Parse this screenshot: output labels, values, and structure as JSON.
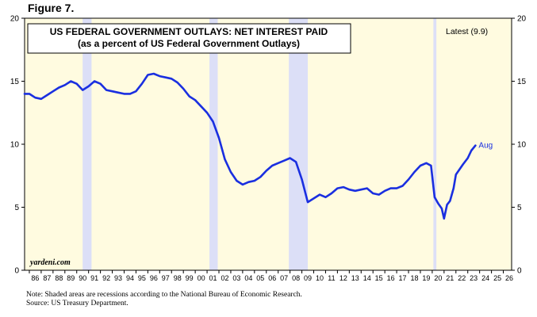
{
  "figure_label": "Figure 7.",
  "chart_data": {
    "type": "line",
    "title": "US FEDERAL GOVERNMENT OUTLAYS: NET INTEREST PAID",
    "subtitle": "(as a percent of US Federal Government Outlays)",
    "latest_label": "Latest (9.9)",
    "end_label": "Aug",
    "watermark": "yardeni.com",
    "xlabel": "",
    "ylabel": "",
    "xlim": [
      1985.6,
      2026.7
    ],
    "ylim": [
      0,
      20
    ],
    "y_ticks": [
      0,
      5,
      10,
      15,
      20
    ],
    "x_tick_labels": [
      "86",
      "87",
      "88",
      "89",
      "90",
      "91",
      "92",
      "93",
      "94",
      "95",
      "96",
      "97",
      "98",
      "99",
      "00",
      "01",
      "02",
      "03",
      "04",
      "05",
      "06",
      "07",
      "08",
      "09",
      "10",
      "11",
      "12",
      "13",
      "14",
      "15",
      "16",
      "17",
      "18",
      "19",
      "20",
      "21",
      "22",
      "23",
      "24",
      "25",
      "26"
    ],
    "grid": false,
    "legend": "none",
    "colors": {
      "line": "#1a2fe0",
      "plot_background": "#fffbe0",
      "recession": "#dcdff7",
      "end_label": "#1a2fe0"
    },
    "recessions": [
      [
        1990.5,
        1991.25
      ],
      [
        2001.2,
        2001.9
      ],
      [
        2007.9,
        2009.5
      ],
      [
        2020.1,
        2020.35
      ]
    ],
    "series": [
      {
        "x": [
          1985.6,
          1986.0,
          1986.5,
          1987.0,
          1987.5,
          1988.0,
          1988.5,
          1989.0,
          1989.5,
          1990.0,
          1990.5,
          1991.0,
          1991.5,
          1992.0,
          1992.5,
          1993.0,
          1993.5,
          1994.0,
          1994.5,
          1995.0,
          1995.5,
          1996.0,
          1996.5,
          1997.0,
          1997.5,
          1998.0,
          1998.5,
          1999.0,
          1999.5,
          2000.0,
          2000.5,
          2001.0,
          2001.5,
          2002.0,
          2002.5,
          2003.0,
          2003.5,
          2004.0,
          2004.5,
          2005.0,
          2005.5,
          2006.0,
          2006.5,
          2007.0,
          2007.5,
          2008.0,
          2008.5,
          2009.0,
          2009.5,
          2010.0,
          2010.5,
          2011.0,
          2011.5,
          2012.0,
          2012.5,
          2013.0,
          2013.5,
          2014.0,
          2014.5,
          2015.0,
          2015.5,
          2016.0,
          2016.5,
          2017.0,
          2017.5,
          2018.0,
          2018.5,
          2019.0,
          2019.5,
          2019.9,
          2020.2,
          2020.5,
          2020.8,
          2021.0,
          2021.25,
          2021.5,
          2021.8,
          2022.0,
          2022.3,
          2022.6,
          2023.0,
          2023.3,
          2023.65
        ],
        "values": [
          14.0,
          14.0,
          13.7,
          13.6,
          13.9,
          14.2,
          14.5,
          14.7,
          15.0,
          14.8,
          14.3,
          14.6,
          15.0,
          14.8,
          14.3,
          14.2,
          14.1,
          14.0,
          14.0,
          14.2,
          14.8,
          15.5,
          15.6,
          15.4,
          15.3,
          15.2,
          14.9,
          14.4,
          13.8,
          13.5,
          13.0,
          12.5,
          11.8,
          10.5,
          8.8,
          7.8,
          7.1,
          6.8,
          7.0,
          7.1,
          7.4,
          7.9,
          8.3,
          8.5,
          8.7,
          8.9,
          8.6,
          7.2,
          5.4,
          5.7,
          6.0,
          5.8,
          6.1,
          6.5,
          6.6,
          6.4,
          6.3,
          6.4,
          6.5,
          6.1,
          6.0,
          6.3,
          6.5,
          6.5,
          6.7,
          7.2,
          7.8,
          8.3,
          8.5,
          8.3,
          5.8,
          5.3,
          4.9,
          4.1,
          5.2,
          5.5,
          6.5,
          7.6,
          8.0,
          8.4,
          8.9,
          9.5,
          9.9
        ]
      }
    ]
  },
  "footnote": {
    "line1": "Note: Shaded areas are recessions according to the National Bureau of Economic Research.",
    "line2": "Source: US Treasury Department."
  }
}
